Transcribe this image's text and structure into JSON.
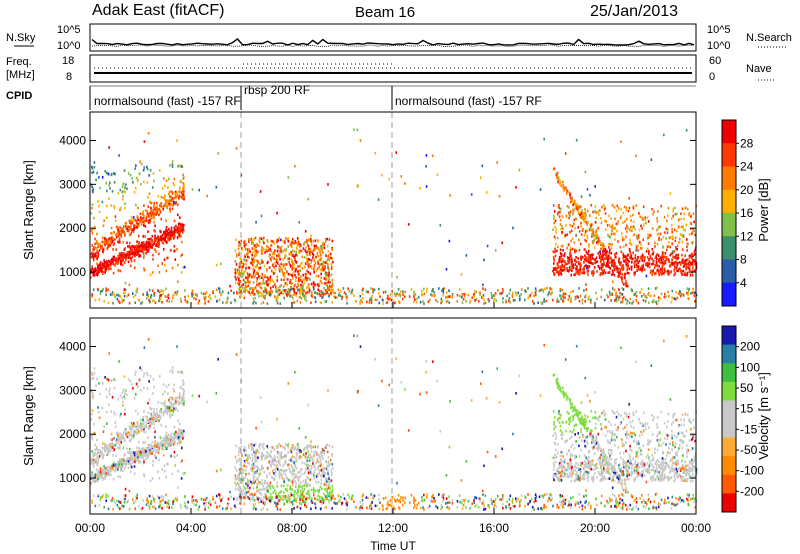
{
  "header": {
    "station": "Adak East (fitACF)",
    "beam": "Beam 16",
    "date": "25/Jan/2013"
  },
  "strip_labels": {
    "nsky": "N.Sky",
    "nsearch": "N.Search",
    "freq_line1": "Freq.",
    "freq_line2": "[MHz]",
    "nave": "Nave",
    "cpid": "CPID"
  },
  "noise_strip": {
    "left_ticks": [
      "10^5",
      "10^0"
    ],
    "right_ticks": [
      "10^5",
      "10^0"
    ]
  },
  "freq_strip": {
    "left_ticks": [
      "18",
      "8"
    ],
    "right_ticks": [
      "60",
      "0"
    ]
  },
  "cpid_segments": [
    {
      "label": "normalsound (fast) -157 RF",
      "start_hour": 0,
      "end_hour": 6
    },
    {
      "label": "rbsp 200 RF",
      "start_hour": 6,
      "end_hour": 12
    },
    {
      "label": "normalsound (fast) -157 RF",
      "start_hour": 12,
      "end_hour": 24
    }
  ],
  "colors": {
    "power_scale": [
      "#1a1aff",
      "#2a5ea8",
      "#3b8f6a",
      "#7fbf4a",
      "#ffb000",
      "#ff7b00",
      "#ff3a00",
      "#ee0000"
    ],
    "velocity_scale": [
      "#ee0000",
      "#ff5a00",
      "#ff8c00",
      "#ffaa33",
      "#c8c8c8",
      "#c8c8c8",
      "#7fdd3f",
      "#3fbf3f",
      "#2a7fa8",
      "#1a1ab0"
    ]
  },
  "chart_data": [
    {
      "type": "heatmap",
      "panel": "power",
      "xlabel": "",
      "ylabel": "Slant Range [km]",
      "x_range_hours": [
        0,
        24
      ],
      "ylim": [
        180,
        4650
      ],
      "yticks": [
        "1000",
        "2000",
        "3000",
        "4000"
      ],
      "colorbar": {
        "label": "Power [dB]",
        "ticks": [
          "28",
          "24",
          "20",
          "16",
          "12",
          "8",
          "4"
        ],
        "range": [
          0,
          32
        ]
      },
      "scatter_regions": [
        {
          "start_hour": 0.0,
          "end_hour": 3.7,
          "min_km": 1000,
          "max_km": 3500,
          "value": "12-28 dB"
        },
        {
          "start_hour": 5.6,
          "end_hour": 9.6,
          "min_km": 500,
          "max_km": 1800,
          "value": "12-28 dB"
        },
        {
          "start_hour": 18.3,
          "end_hour": 24.0,
          "min_km": 700,
          "max_km": 3500,
          "value": "16-28 dB"
        }
      ]
    },
    {
      "type": "heatmap",
      "panel": "velocity",
      "xlabel": "Time UT",
      "ylabel": "Slant Range [km]",
      "x_range_hours": [
        0,
        24
      ],
      "xticks": [
        "00:00",
        "04:00",
        "08:00",
        "12:00",
        "16:00",
        "20:00",
        "00:00"
      ],
      "ylim": [
        180,
        4650
      ],
      "yticks": [
        "1000",
        "2000",
        "3000",
        "4000"
      ],
      "colorbar": {
        "label": "Velocity [m s⁻¹]",
        "ticks": [
          "200",
          "100",
          "50",
          "15",
          "-15",
          "-50",
          "-100",
          "-200"
        ],
        "range": [
          -300,
          300
        ]
      }
    }
  ]
}
